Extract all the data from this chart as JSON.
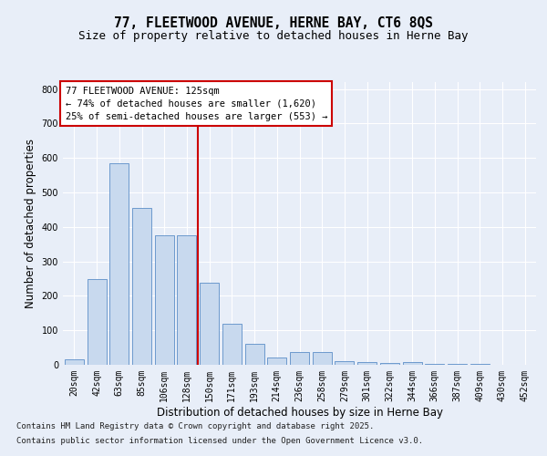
{
  "title_line1": "77, FLEETWOOD AVENUE, HERNE BAY, CT6 8QS",
  "title_line2": "Size of property relative to detached houses in Herne Bay",
  "xlabel": "Distribution of detached houses by size in Herne Bay",
  "ylabel": "Number of detached properties",
  "categories": [
    "20sqm",
    "42sqm",
    "63sqm",
    "85sqm",
    "106sqm",
    "128sqm",
    "150sqm",
    "171sqm",
    "193sqm",
    "214sqm",
    "236sqm",
    "258sqm",
    "279sqm",
    "301sqm",
    "322sqm",
    "344sqm",
    "366sqm",
    "387sqm",
    "409sqm",
    "430sqm",
    "452sqm"
  ],
  "values": [
    15,
    248,
    585,
    455,
    375,
    375,
    238,
    120,
    60,
    22,
    38,
    38,
    10,
    8,
    5,
    8,
    3,
    2,
    2,
    1,
    1
  ],
  "bar_color": "#c8d9ee",
  "bar_edge_color": "#5b8dc8",
  "vline_x_index": 5,
  "vline_color": "#cc0000",
  "annotation_title": "77 FLEETWOOD AVENUE: 125sqm",
  "annotation_line1": "← 74% of detached houses are smaller (1,620)",
  "annotation_line2": "25% of semi-detached houses are larger (553) →",
  "annotation_box_color": "#ffffff",
  "annotation_edge_color": "#cc0000",
  "ylim": [
    0,
    820
  ],
  "yticks": [
    0,
    100,
    200,
    300,
    400,
    500,
    600,
    700,
    800
  ],
  "bg_color": "#e8eef8",
  "plot_bg_color": "#e8eef8",
  "grid_color": "#ffffff",
  "footnote_line1": "Contains HM Land Registry data © Crown copyright and database right 2025.",
  "footnote_line2": "Contains public sector information licensed under the Open Government Licence v3.0.",
  "title_fontsize": 10.5,
  "subtitle_fontsize": 9,
  "axis_label_fontsize": 8.5,
  "tick_fontsize": 7,
  "annotation_fontsize": 7.5,
  "footnote_fontsize": 6.5
}
